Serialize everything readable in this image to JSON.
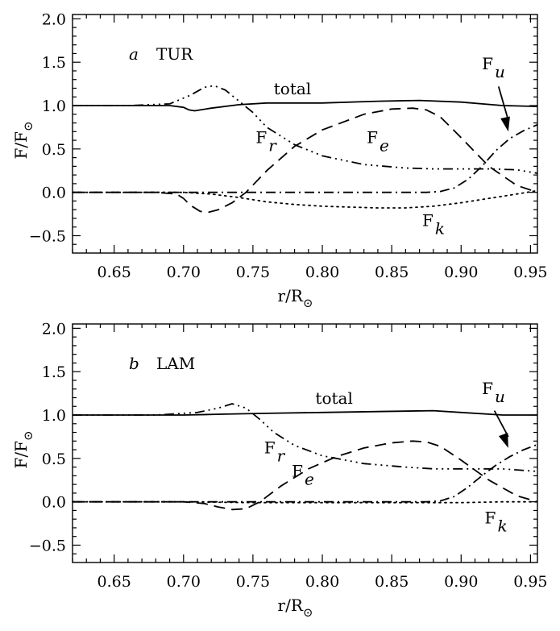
{
  "chart_data": [
    {
      "type": "line",
      "panel_letter": "a",
      "panel_name": "TUR",
      "xlabel": "r/R",
      "xlabel_sub": "⊙",
      "ylabel": "F/F",
      "ylabel_sub": "⊙",
      "xlim": [
        0.62,
        0.955
      ],
      "ylim": [
        -0.7,
        2.05
      ],
      "xticks": [
        "0.65",
        "0.70",
        "0.75",
        "0.80",
        "0.85",
        "0.90",
        "0.95"
      ],
      "yticks": [
        "−0.5",
        "0.0",
        "0.5",
        "1.0",
        "1.5",
        "2.0"
      ],
      "series": [
        {
          "name": "total",
          "style": "solid",
          "x": [
            0.62,
            0.66,
            0.69,
            0.7,
            0.704,
            0.708,
            0.712,
            0.72,
            0.74,
            0.76,
            0.8,
            0.84,
            0.87,
            0.9,
            0.93,
            0.955
          ],
          "y": [
            1.0,
            1.0,
            1.0,
            0.98,
            0.95,
            0.94,
            0.95,
            0.97,
            1.01,
            1.03,
            1.03,
            1.05,
            1.06,
            1.04,
            1.0,
            0.99
          ]
        },
        {
          "name": "F_r",
          "style": "dashdot3",
          "x": [
            0.62,
            0.66,
            0.69,
            0.705,
            0.715,
            0.722,
            0.73,
            0.74,
            0.75,
            0.76,
            0.78,
            0.8,
            0.83,
            0.86,
            0.88,
            0.9,
            0.92,
            0.94,
            0.955
          ],
          "y": [
            1.0,
            1.0,
            1.02,
            1.12,
            1.21,
            1.23,
            1.18,
            1.05,
            0.92,
            0.75,
            0.55,
            0.42,
            0.32,
            0.28,
            0.27,
            0.27,
            0.27,
            0.26,
            0.22
          ]
        },
        {
          "name": "F_e",
          "style": "dashed",
          "x": [
            0.62,
            0.68,
            0.695,
            0.7,
            0.705,
            0.712,
            0.718,
            0.725,
            0.735,
            0.745,
            0.76,
            0.78,
            0.8,
            0.83,
            0.85,
            0.865,
            0.875,
            0.885,
            0.9,
            0.92,
            0.94,
            0.955
          ],
          "y": [
            0.0,
            0.0,
            -0.02,
            -0.07,
            -0.15,
            -0.22,
            -0.23,
            -0.2,
            -0.12,
            0.0,
            0.25,
            0.53,
            0.72,
            0.9,
            0.96,
            0.97,
            0.95,
            0.87,
            0.63,
            0.3,
            0.08,
            0.0
          ]
        },
        {
          "name": "F_u",
          "style": "dashdot1",
          "x": [
            0.62,
            0.7,
            0.75,
            0.8,
            0.85,
            0.875,
            0.885,
            0.895,
            0.905,
            0.915,
            0.925,
            0.935,
            0.945,
            0.955
          ],
          "y": [
            0.0,
            0.0,
            0.0,
            0.0,
            0.0,
            0.0,
            0.01,
            0.05,
            0.15,
            0.3,
            0.48,
            0.62,
            0.71,
            0.78
          ]
        },
        {
          "name": "F_k",
          "style": "dotted",
          "x": [
            0.62,
            0.7,
            0.72,
            0.74,
            0.76,
            0.78,
            0.8,
            0.82,
            0.84,
            0.86,
            0.88,
            0.9,
            0.92,
            0.94,
            0.955
          ],
          "y": [
            0.0,
            0.0,
            -0.02,
            -0.06,
            -0.11,
            -0.14,
            -0.16,
            -0.17,
            -0.18,
            -0.18,
            -0.16,
            -0.12,
            -0.07,
            -0.02,
            0.02
          ]
        }
      ],
      "annotations": [
        {
          "id": "total",
          "text": "total",
          "x": 0.765,
          "y": 1.13
        },
        {
          "id": "Fr",
          "text": "F",
          "sub": "r",
          "x": 0.752,
          "y": 0.57
        },
        {
          "id": "Fe",
          "text": "F",
          "sub": "e",
          "x": 0.832,
          "y": 0.57
        },
        {
          "id": "Fu",
          "text": "F",
          "sub": "u",
          "x": 0.915,
          "y": 1.42
        },
        {
          "id": "Fk",
          "text": "F",
          "sub": "k",
          "x": 0.872,
          "y": -0.39
        }
      ],
      "arrow": {
        "from": [
          0.927,
          1.22
        ],
        "to": [
          0.934,
          0.7
        ]
      }
    },
    {
      "type": "line",
      "panel_letter": "b",
      "panel_name": "LAM",
      "xlabel": "r/R",
      "xlabel_sub": "⊙",
      "ylabel": "F/F",
      "ylabel_sub": "⊙",
      "xlim": [
        0.62,
        0.955
      ],
      "ylim": [
        -0.7,
        2.05
      ],
      "xticks": [
        "0.65",
        "0.70",
        "0.75",
        "0.80",
        "0.85",
        "0.90",
        "0.95"
      ],
      "yticks": [
        "−0.5",
        "0.0",
        "0.5",
        "1.0",
        "1.5",
        "2.0"
      ],
      "series": [
        {
          "name": "total",
          "style": "solid",
          "x": [
            0.62,
            0.66,
            0.7,
            0.73,
            0.76,
            0.8,
            0.84,
            0.88,
            0.9,
            0.93,
            0.955
          ],
          "y": [
            1.0,
            1.0,
            1.0,
            1.01,
            1.02,
            1.03,
            1.04,
            1.05,
            1.03,
            1.0,
            1.0
          ]
        },
        {
          "name": "F_r",
          "style": "dashdot3",
          "x": [
            0.62,
            0.68,
            0.71,
            0.725,
            0.735,
            0.745,
            0.755,
            0.765,
            0.78,
            0.8,
            0.83,
            0.86,
            0.88,
            0.9,
            0.93,
            0.955
          ],
          "y": [
            1.0,
            1.0,
            1.03,
            1.08,
            1.13,
            1.08,
            0.95,
            0.8,
            0.65,
            0.53,
            0.44,
            0.4,
            0.38,
            0.38,
            0.38,
            0.35
          ]
        },
        {
          "name": "F_e",
          "style": "dashed",
          "x": [
            0.62,
            0.7,
            0.715,
            0.725,
            0.735,
            0.745,
            0.755,
            0.77,
            0.79,
            0.81,
            0.83,
            0.85,
            0.865,
            0.875,
            0.885,
            0.9,
            0.92,
            0.94,
            0.955
          ],
          "y": [
            0.0,
            0.0,
            -0.02,
            -0.06,
            -0.09,
            -0.08,
            0.0,
            0.18,
            0.38,
            0.52,
            0.62,
            0.68,
            0.7,
            0.69,
            0.64,
            0.48,
            0.25,
            0.07,
            0.0
          ]
        },
        {
          "name": "F_u",
          "style": "dashdot1",
          "x": [
            0.62,
            0.7,
            0.75,
            0.8,
            0.85,
            0.875,
            0.885,
            0.895,
            0.905,
            0.915,
            0.925,
            0.935,
            0.945,
            0.955
          ],
          "y": [
            0.0,
            0.0,
            0.0,
            0.0,
            0.0,
            0.0,
            0.01,
            0.06,
            0.17,
            0.3,
            0.42,
            0.52,
            0.6,
            0.66
          ]
        },
        {
          "name": "F_k",
          "style": "dotted",
          "x": [
            0.62,
            0.7,
            0.75,
            0.8,
            0.85,
            0.9,
            0.93,
            0.955
          ],
          "y": [
            0.0,
            0.0,
            -0.01,
            -0.01,
            -0.01,
            -0.01,
            0.0,
            0.0
          ]
        }
      ],
      "annotations": [
        {
          "id": "total",
          "text": "total",
          "x": 0.795,
          "y": 1.13
        },
        {
          "id": "Fr",
          "text": "F",
          "sub": "r",
          "x": 0.758,
          "y": 0.56
        },
        {
          "id": "Fe",
          "text": "F",
          "sub": "e",
          "x": 0.778,
          "y": 0.29
        },
        {
          "id": "Fu",
          "text": "F",
          "sub": "u",
          "x": 0.915,
          "y": 1.24
        },
        {
          "id": "Fk",
          "text": "F",
          "sub": "k",
          "x": 0.917,
          "y": -0.25
        }
      ],
      "arrow": {
        "from": [
          0.924,
          1.05
        ],
        "to": [
          0.934,
          0.62
        ]
      }
    }
  ]
}
